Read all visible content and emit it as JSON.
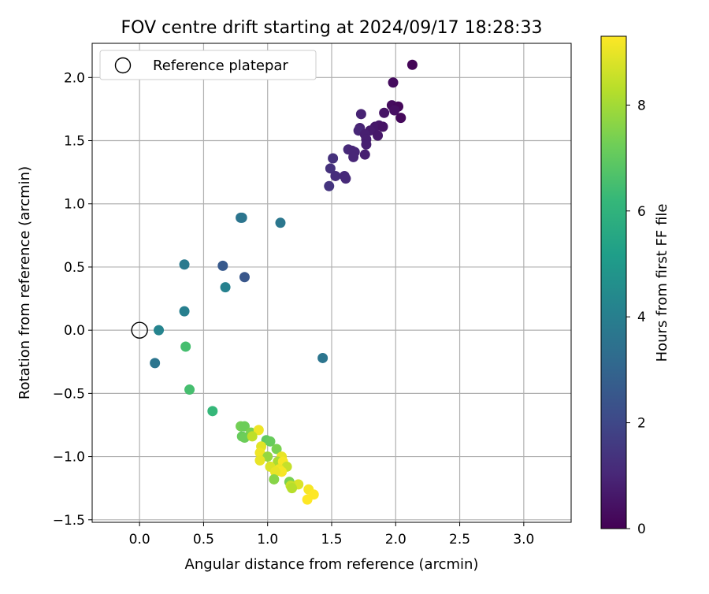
{
  "chart_data": {
    "type": "scatter",
    "title": "FOV centre drift starting at 2024/09/17 18:28:33",
    "xlabel": "Angular distance from reference (arcmin)",
    "ylabel": "Rotation from reference (arcmin)",
    "xlim": [
      -0.37,
      3.37
    ],
    "ylim": [
      -1.52,
      2.27
    ],
    "x_ticks": [
      0.0,
      0.5,
      1.0,
      1.5,
      2.0,
      2.5,
      3.0
    ],
    "x_tick_labels": [
      "0.0",
      "0.5",
      "1.0",
      "1.5",
      "2.0",
      "2.5",
      "3.0"
    ],
    "y_ticks": [
      -1.5,
      -1.0,
      -0.5,
      0.0,
      0.5,
      1.0,
      1.5,
      2.0
    ],
    "y_tick_labels": [
      "−1.5",
      "−1.0",
      "−0.5",
      "0.0",
      "0.5",
      "1.0",
      "1.5",
      "2.0"
    ],
    "grid": true,
    "legend": {
      "position": "top-left",
      "entries": [
        {
          "label": "Reference platepar",
          "marker": "open-circle"
        }
      ]
    },
    "reference_point": {
      "x": 0.0,
      "y": 0.0,
      "label": "Reference platepar"
    },
    "colorbar": {
      "label": "Hours from first FF file",
      "colormap": "viridis",
      "range": [
        0,
        9.3
      ],
      "ticks": [
        0,
        2,
        4,
        6,
        8
      ],
      "tick_labels": [
        "0",
        "2",
        "4",
        "6",
        "8"
      ]
    },
    "points": [
      {
        "x": 2.13,
        "y": 2.1,
        "c": 0.1
      },
      {
        "x": 1.98,
        "y": 1.96,
        "c": 0.3
      },
      {
        "x": 1.97,
        "y": 1.78,
        "c": 0.3
      },
      {
        "x": 2.02,
        "y": 1.77,
        "c": 0.2
      },
      {
        "x": 1.99,
        "y": 1.74,
        "c": 0.4
      },
      {
        "x": 1.91,
        "y": 1.72,
        "c": 0.5
      },
      {
        "x": 1.73,
        "y": 1.71,
        "c": 0.9
      },
      {
        "x": 2.04,
        "y": 1.68,
        "c": 0.2
      },
      {
        "x": 1.87,
        "y": 1.62,
        "c": 0.6
      },
      {
        "x": 1.84,
        "y": 1.61,
        "c": 0.6
      },
      {
        "x": 1.9,
        "y": 1.61,
        "c": 0.5
      },
      {
        "x": 1.72,
        "y": 1.6,
        "c": 0.9
      },
      {
        "x": 1.71,
        "y": 1.58,
        "c": 1.0
      },
      {
        "x": 1.8,
        "y": 1.58,
        "c": 0.7
      },
      {
        "x": 1.76,
        "y": 1.55,
        "c": 0.8
      },
      {
        "x": 1.86,
        "y": 1.54,
        "c": 0.6
      },
      {
        "x": 1.77,
        "y": 1.51,
        "c": 0.8
      },
      {
        "x": 1.77,
        "y": 1.47,
        "c": 0.8
      },
      {
        "x": 1.63,
        "y": 1.43,
        "c": 1.1
      },
      {
        "x": 1.66,
        "y": 1.42,
        "c": 1.0
      },
      {
        "x": 1.68,
        "y": 1.41,
        "c": 1.0
      },
      {
        "x": 1.76,
        "y": 1.39,
        "c": 0.8
      },
      {
        "x": 1.67,
        "y": 1.37,
        "c": 1.0
      },
      {
        "x": 1.51,
        "y": 1.36,
        "c": 1.3
      },
      {
        "x": 1.49,
        "y": 1.28,
        "c": 1.3
      },
      {
        "x": 1.53,
        "y": 1.22,
        "c": 1.2
      },
      {
        "x": 1.6,
        "y": 1.22,
        "c": 1.1
      },
      {
        "x": 1.61,
        "y": 1.2,
        "c": 1.1
      },
      {
        "x": 1.48,
        "y": 1.14,
        "c": 1.4
      },
      {
        "x": 0.79,
        "y": 0.89,
        "c": 3.6
      },
      {
        "x": 0.8,
        "y": 0.89,
        "c": 3.6
      },
      {
        "x": 1.1,
        "y": 0.85,
        "c": 3.7
      },
      {
        "x": 0.35,
        "y": 0.52,
        "c": 3.8
      },
      {
        "x": 0.65,
        "y": 0.51,
        "c": 2.6
      },
      {
        "x": 0.82,
        "y": 0.42,
        "c": 2.5
      },
      {
        "x": 0.67,
        "y": 0.34,
        "c": 4.1
      },
      {
        "x": 0.35,
        "y": 0.15,
        "c": 4.0
      },
      {
        "x": 0.15,
        "y": 0.0,
        "c": 4.2
      },
      {
        "x": 0.12,
        "y": -0.26,
        "c": 3.6
      },
      {
        "x": 1.43,
        "y": -0.22,
        "c": 3.6
      },
      {
        "x": 0.36,
        "y": -0.13,
        "c": 6.5
      },
      {
        "x": 0.39,
        "y": -0.47,
        "c": 6.5
      },
      {
        "x": 0.57,
        "y": -0.64,
        "c": 6.2
      },
      {
        "x": 0.79,
        "y": -0.76,
        "c": 7.3
      },
      {
        "x": 0.82,
        "y": -0.76,
        "c": 7.2
      },
      {
        "x": 0.87,
        "y": -0.81,
        "c": 7.4
      },
      {
        "x": 0.93,
        "y": -0.79,
        "c": 9.1
      },
      {
        "x": 0.8,
        "y": -0.84,
        "c": 7.1
      },
      {
        "x": 0.82,
        "y": -0.85,
        "c": 7.2
      },
      {
        "x": 0.88,
        "y": -0.84,
        "c": 8.4
      },
      {
        "x": 0.99,
        "y": -0.87,
        "c": 7.0
      },
      {
        "x": 1.02,
        "y": -0.88,
        "c": 7.1
      },
      {
        "x": 0.95,
        "y": -0.92,
        "c": 8.9
      },
      {
        "x": 1.07,
        "y": -0.94,
        "c": 7.4
      },
      {
        "x": 0.94,
        "y": -0.97,
        "c": 9.1
      },
      {
        "x": 1.0,
        "y": -1.0,
        "c": 7.8
      },
      {
        "x": 1.11,
        "y": -1.0,
        "c": 9.0
      },
      {
        "x": 0.94,
        "y": -1.03,
        "c": 9.0
      },
      {
        "x": 1.08,
        "y": -1.04,
        "c": 8.1
      },
      {
        "x": 1.12,
        "y": -1.04,
        "c": 9.2
      },
      {
        "x": 1.15,
        "y": -1.08,
        "c": 8.5
      },
      {
        "x": 1.02,
        "y": -1.08,
        "c": 8.8
      },
      {
        "x": 1.09,
        "y": -1.1,
        "c": 9.1
      },
      {
        "x": 1.11,
        "y": -1.12,
        "c": 9.2
      },
      {
        "x": 1.06,
        "y": -1.12,
        "c": 9.0
      },
      {
        "x": 1.05,
        "y": -1.18,
        "c": 7.6
      },
      {
        "x": 1.17,
        "y": -1.2,
        "c": 7.4
      },
      {
        "x": 1.24,
        "y": -1.22,
        "c": 8.8
      },
      {
        "x": 1.18,
        "y": -1.23,
        "c": 8.5
      },
      {
        "x": 1.19,
        "y": -1.25,
        "c": 8.3
      },
      {
        "x": 1.32,
        "y": -1.26,
        "c": 9.2
      },
      {
        "x": 1.36,
        "y": -1.3,
        "c": 9.3
      },
      {
        "x": 1.31,
        "y": -1.34,
        "c": 9.3
      }
    ]
  }
}
